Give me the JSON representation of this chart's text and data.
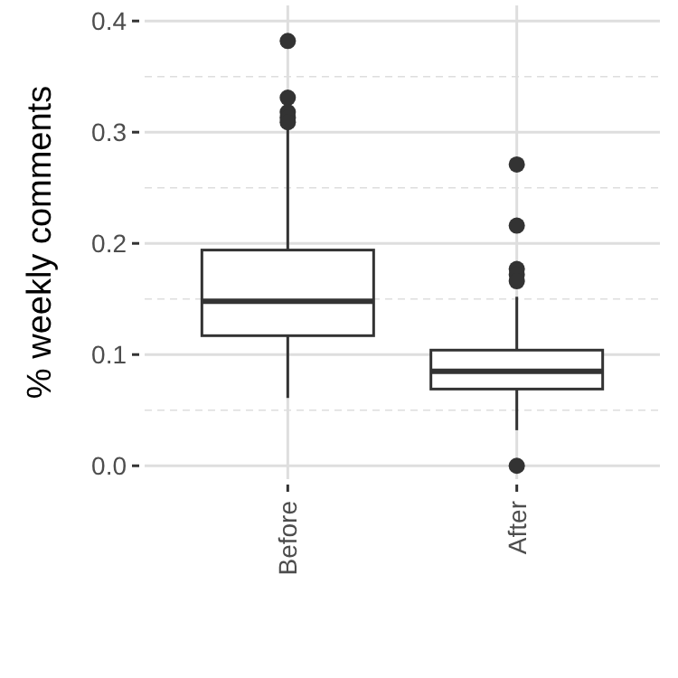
{
  "chart_data": {
    "type": "box",
    "ylabel": "% weekly comments",
    "categories": [
      "Before",
      "After"
    ],
    "boxes": [
      {
        "low": 0.061,
        "q1": 0.117,
        "median": 0.148,
        "q3": 0.194,
        "high": 0.305,
        "outliers": [
          0.382,
          0.331,
          0.318,
          0.313,
          0.309
        ]
      },
      {
        "low": 0.032,
        "q1": 0.069,
        "median": 0.085,
        "q3": 0.104,
        "high": 0.152,
        "outliers": [
          0.271,
          0.216,
          0.177,
          0.172,
          0.166,
          0
        ]
      }
    ],
    "color": "#333333",
    "ylim": [
      -0.012,
      0.414
    ],
    "yticks": [
      {
        "value": 0,
        "label": "0.0"
      },
      {
        "value": 0.05,
        "label": null
      },
      0.1,
      {
        "value": 0.15,
        "label": null
      },
      0.2,
      {
        "value": 0.25,
        "label": null
      },
      0.3,
      {
        "value": 0.35,
        "label": null
      },
      0.4
    ],
    "grid": true
  }
}
